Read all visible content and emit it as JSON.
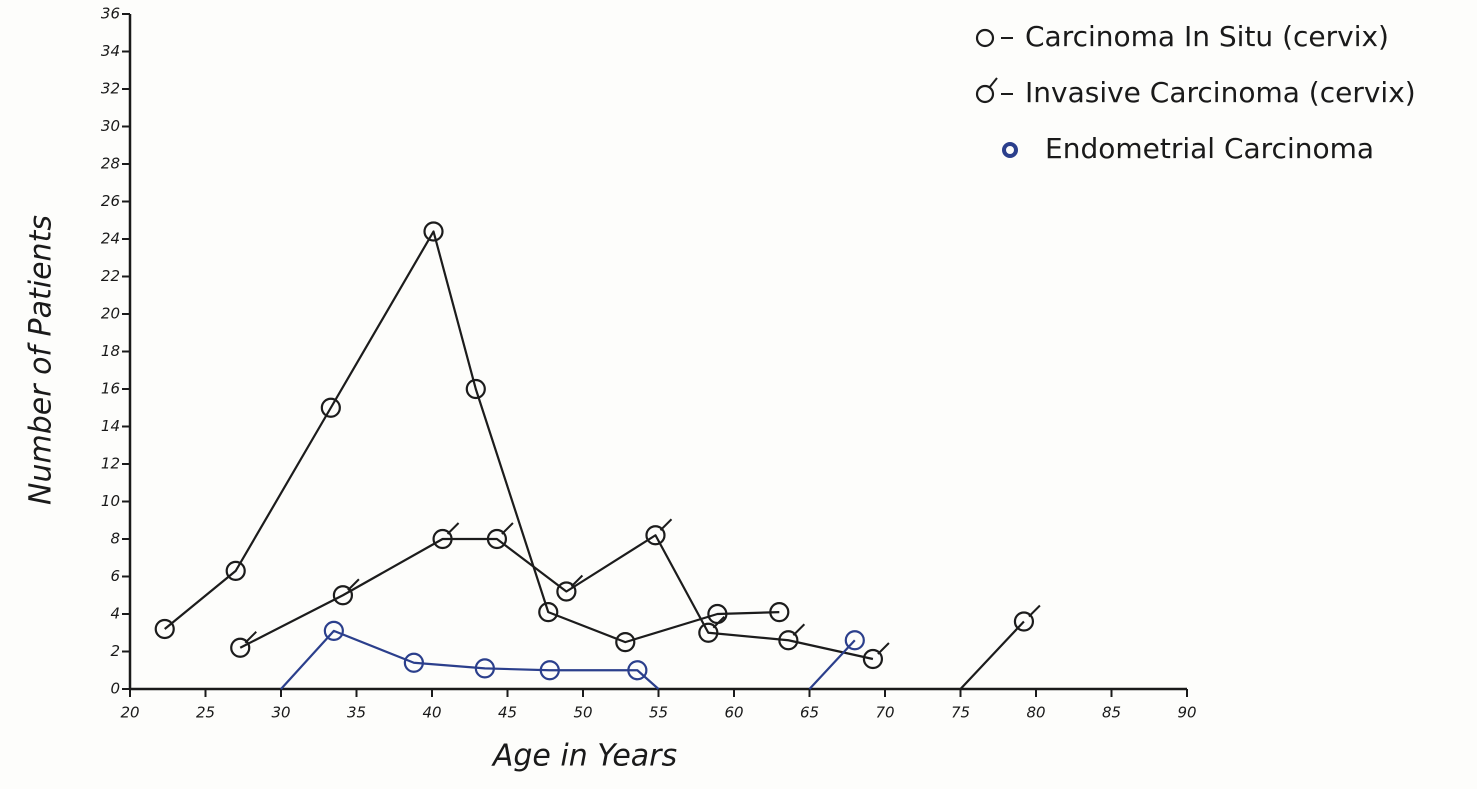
{
  "chart_data": {
    "type": "line",
    "xlabel": "Age in Years",
    "ylabel": "Number of Patients",
    "xlim": [
      20,
      90
    ],
    "ylim": [
      0,
      36
    ],
    "xticks": [
      20,
      25,
      30,
      35,
      40,
      45,
      50,
      55,
      60,
      65,
      70,
      75,
      80,
      85,
      90
    ],
    "yticks": [
      0,
      2,
      4,
      6,
      8,
      10,
      12,
      14,
      16,
      18,
      20,
      22,
      24,
      26,
      28,
      30,
      32,
      34,
      36
    ],
    "grid": false,
    "legend": "upper right",
    "series": [
      {
        "name": "Carcinoma In Situ (cervix)",
        "color": "#1c1c1c",
        "marker": "circle",
        "x": [
          22.3,
          27,
          33.3,
          40.1,
          42.9,
          47.7,
          52.8,
          58.9,
          63
        ],
        "values": [
          3.2,
          6.3,
          15,
          24.4,
          16,
          4.1,
          2.5,
          4,
          4.1
        ]
      },
      {
        "name": "Invasive Carcinoma (cervix)",
        "color": "#1c1c1c",
        "marker": "circle-tick",
        "x": [
          27.3,
          34.1,
          40.7,
          44.3,
          48.9,
          54.8,
          58.3,
          63.6,
          69.2,
          72,
          75,
          79.2
        ],
        "values": [
          2.2,
          5,
          8,
          8,
          5.2,
          8.2,
          3,
          2.6,
          1.6,
          null,
          0,
          3.6
        ]
      },
      {
        "name": "Endometrial Carcinoma",
        "color": "#2b3f8c",
        "marker": "circle",
        "x": [
          30,
          33.5,
          38.8,
          43.5,
          47.8,
          53.6,
          55,
          60,
          65,
          68
        ],
        "values": [
          0,
          3.1,
          1.4,
          1.1,
          1.0,
          1.0,
          0,
          null,
          0,
          2.6
        ]
      }
    ]
  }
}
